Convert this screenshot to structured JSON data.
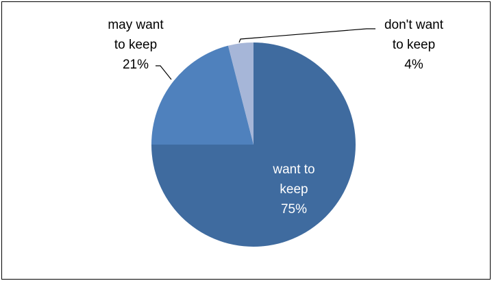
{
  "chart_data": {
    "type": "pie",
    "title": "",
    "slices": [
      {
        "name": "want to keep",
        "value": 75,
        "label_lines": [
          "want to",
          "keep",
          "75%"
        ],
        "color": "#3f6b9f",
        "label_color": "#ffffff"
      },
      {
        "name": "may want to keep",
        "value": 21,
        "label_lines": [
          "may want",
          "to keep",
          "21%"
        ],
        "color": "#4f81bd",
        "label_color": "#000000"
      },
      {
        "name": "don't want to keep",
        "value": 4,
        "label_lines": [
          "don't want",
          "to keep",
          "4%"
        ],
        "color": "#a6b6d8",
        "label_color": "#000000"
      }
    ],
    "legend": "none",
    "data_labels": "category name and percent",
    "start_angle": "12 o'clock, clockwise"
  }
}
